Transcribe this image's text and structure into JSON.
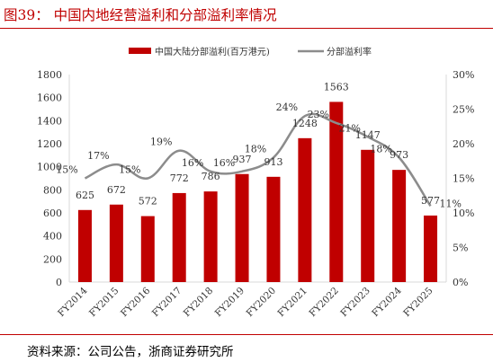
{
  "title": "图39： 中国内地经营溢利和分部溢利率情况",
  "source": "资料来源：公司公告，浙商证券研究所",
  "colors": {
    "bar": "#c00000",
    "line": "#8c8c8c",
    "title": "#c00000",
    "axis": "#d9d9d9"
  },
  "chart_data": {
    "type": "bar",
    "categories": [
      "FY2014",
      "FY2015",
      "FY2016",
      "FY2017",
      "FY2018",
      "FY2019",
      "FY2020",
      "FY2021",
      "FY2022",
      "FY2023",
      "FY2024",
      "FY2025"
    ],
    "series": [
      {
        "name": "中国大陆分部溢利(百万港元)",
        "type": "bar",
        "axis": "left",
        "values": [
          625,
          672,
          572,
          772,
          786,
          937,
          913,
          1248,
          1563,
          1147,
          973,
          577
        ],
        "labels": [
          "625",
          "672",
          "572",
          "772",
          "786",
          "937",
          "913",
          "1248",
          "1563",
          "1147",
          "973",
          "577"
        ]
      },
      {
        "name": "分部溢利率",
        "type": "line",
        "axis": "right",
        "values": [
          15,
          17,
          15,
          19,
          16,
          16,
          18,
          24,
          23,
          21,
          18,
          11
        ],
        "labels": [
          "15%",
          "17%",
          "15%",
          "19%",
          "16%",
          "16%",
          "18%",
          "24%",
          "23%",
          "21%",
          "18%",
          "11%"
        ]
      }
    ],
    "ylim": [
      0,
      1800
    ],
    "yticks": [
      "0",
      "200",
      "400",
      "600",
      "800",
      "1000",
      "1200",
      "1400",
      "1600",
      "1800"
    ],
    "y2lim": [
      0,
      30
    ],
    "y2ticks": [
      "0%",
      "5%",
      "10%",
      "15%",
      "20%",
      "25%",
      "30%"
    ],
    "legend_position": "top-center",
    "grid": false
  }
}
